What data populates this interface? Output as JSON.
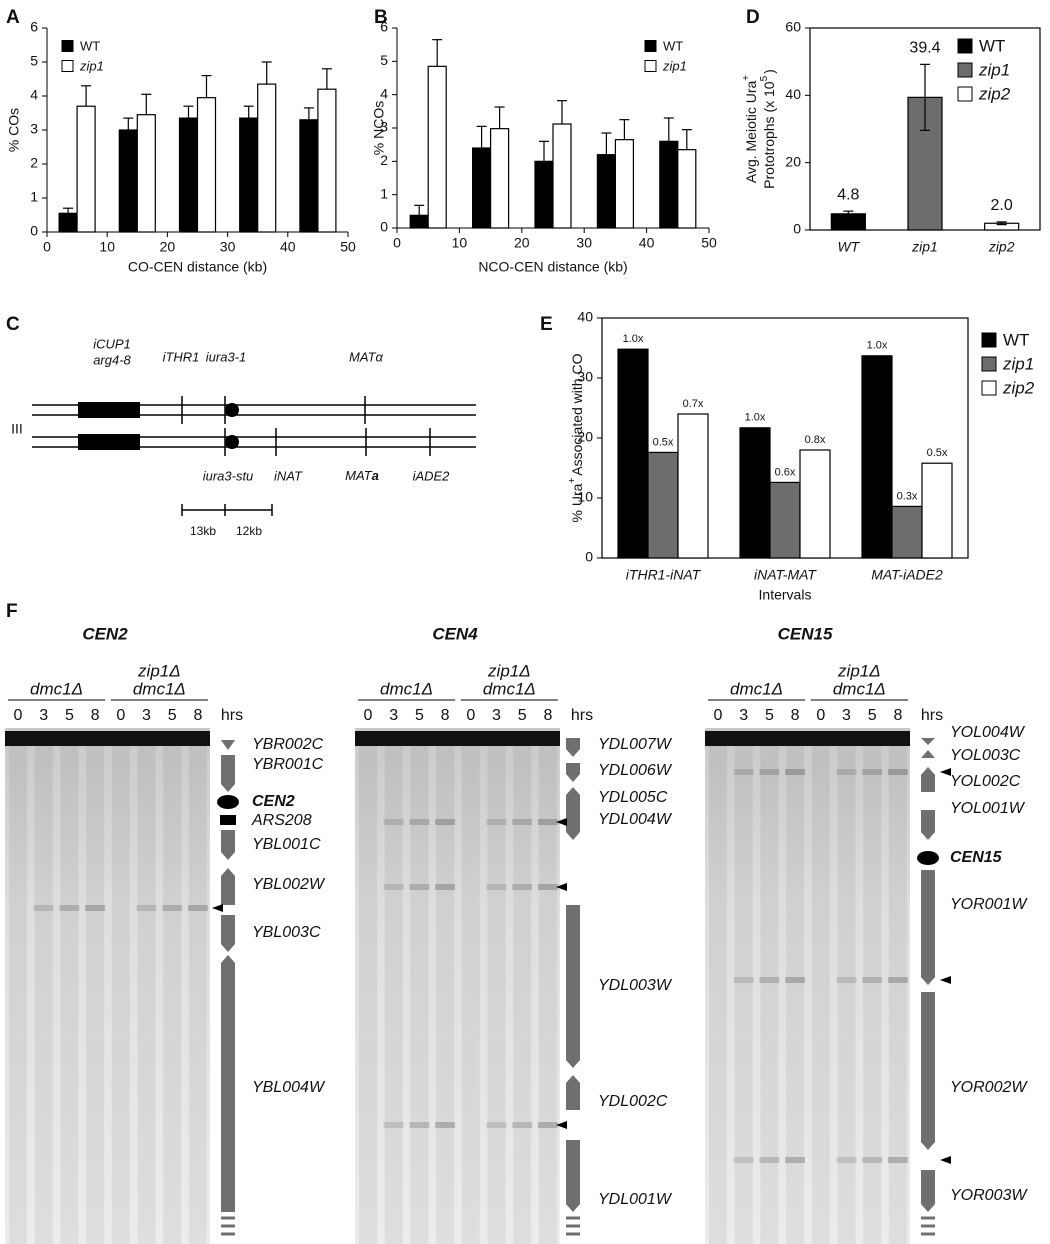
{
  "chart_data": [
    {
      "panel": "A",
      "type": "bar",
      "xlabel": "CO-CEN distance (kb)",
      "ylabel": "% COs",
      "x": [
        5,
        15,
        25,
        35,
        45
      ],
      "xlim": [
        0,
        50
      ],
      "xticks": [
        0,
        10,
        20,
        30,
        40,
        50
      ],
      "ylim": [
        0,
        6
      ],
      "yticks": [
        0,
        1,
        2,
        3,
        4,
        5,
        6
      ],
      "legend": "upper left",
      "series": [
        {
          "name": "WT",
          "color": "#000000",
          "values": [
            0.55,
            3.0,
            3.35,
            3.35,
            3.3
          ],
          "errors": [
            0.15,
            0.35,
            0.35,
            0.35,
            0.35
          ]
        },
        {
          "name": "zip1",
          "color": "#ffffff",
          "values": [
            3.7,
            3.45,
            3.95,
            4.35,
            4.2
          ],
          "errors": [
            0.6,
            0.6,
            0.65,
            0.65,
            0.6
          ]
        }
      ]
    },
    {
      "panel": "B",
      "type": "bar",
      "xlabel": "NCO-CEN distance (kb)",
      "ylabel": "% NCOs",
      "x": [
        5,
        15,
        25,
        35,
        45
      ],
      "xlim": [
        0,
        50
      ],
      "xticks": [
        0,
        10,
        20,
        30,
        40,
        50
      ],
      "ylim": [
        0,
        6
      ],
      "yticks": [
        0,
        1,
        2,
        3,
        4,
        5,
        6
      ],
      "legend": "upper right",
      "series": [
        {
          "name": "WT",
          "color": "#000000",
          "values": [
            0.38,
            2.4,
            2.0,
            2.2,
            2.6
          ],
          "errors": [
            0.3,
            0.65,
            0.6,
            0.65,
            0.7
          ]
        },
        {
          "name": "zip1",
          "color": "#ffffff",
          "values": [
            4.85,
            2.98,
            3.12,
            2.65,
            2.35
          ],
          "errors": [
            0.8,
            0.65,
            0.7,
            0.6,
            0.6
          ]
        }
      ]
    },
    {
      "panel": "D",
      "type": "bar",
      "ylabel": [
        "Avg. Meiotic Ura",
        "+",
        "Prototrophs (x 10",
        "5",
        ")"
      ],
      "categories": [
        "WT",
        "zip1",
        "zip2"
      ],
      "values": [
        4.8,
        39.4,
        2.0
      ],
      "value_labels": [
        "4.8",
        "39.4",
        "2.0"
      ],
      "errors": [
        0.8,
        9.8,
        0.4
      ],
      "colors": [
        "#000000",
        "#6d6d6d",
        "#ffffff"
      ],
      "ylim": [
        0,
        60
      ],
      "yticks": [
        0,
        20,
        40,
        60
      ],
      "legend": "upper right"
    },
    {
      "panel": "E",
      "type": "bar",
      "ylabel": [
        "% Ura",
        "+",
        "Associated with CO"
      ],
      "xlabel": "Intervals",
      "categories": [
        "iTHR1-iNAT",
        "iNAT-MAT",
        "MAT-iADE2"
      ],
      "ylim": [
        0,
        40
      ],
      "yticks": [
        0,
        10,
        20,
        30,
        40
      ],
      "legend": "right",
      "series": [
        {
          "name": "WT",
          "color": "#000000",
          "values": [
            34.8,
            21.7,
            33.7
          ],
          "fold_labels": [
            "1.0x",
            "1.0x",
            "1.0x"
          ]
        },
        {
          "name": "zip1",
          "color": "#6d6d6d",
          "values": [
            17.6,
            12.6,
            8.6
          ],
          "fold_labels": [
            "0.5x",
            "0.6x",
            "0.3x"
          ]
        },
        {
          "name": "zip2",
          "color": "#ffffff",
          "values": [
            24.0,
            18.0,
            15.8
          ],
          "fold_labels": [
            "0.7x",
            "0.8x",
            "0.5x"
          ]
        }
      ]
    }
  ],
  "diagram": {
    "panel": "C",
    "chromosome": "III",
    "top_labels": [
      "iCUP1",
      "arg4-8",
      "iTHR1",
      "iura3-1",
      "MATα"
    ],
    "bottom_labels": [
      "iura3-stu",
      "iNAT",
      "iADE2"
    ],
    "mat_a": [
      "MAT",
      "a"
    ],
    "scale": [
      "13kb",
      "12kb"
    ]
  },
  "gel_figure": {
    "panel": "F",
    "unit": "hrs",
    "blots": [
      {
        "title": "CEN2",
        "groups": [
          {
            "lines": [
              "dmc1Δ"
            ],
            "lanes": [
              "0",
              "3",
              "5",
              "8"
            ]
          },
          {
            "lines": [
              "zip1Δ",
              "dmc1Δ"
            ],
            "lanes": [
              "0",
              "3",
              "5",
              "8"
            ]
          }
        ],
        "genes": [
          {
            "name": "YBR002C"
          },
          {
            "name": "YBR001C"
          },
          {
            "name": "CEN2",
            "bold": true
          },
          {
            "name": "ARS208"
          },
          {
            "name": "YBL001C"
          },
          {
            "name": "YBL002W"
          },
          {
            "name": "YBL003C"
          },
          {
            "name": "YBL004W"
          }
        ]
      },
      {
        "title": "CEN4",
        "groups": [
          {
            "lines": [
              "dmc1Δ"
            ],
            "lanes": [
              "0",
              "3",
              "5",
              "8"
            ]
          },
          {
            "lines": [
              "zip1Δ",
              "dmc1Δ"
            ],
            "lanes": [
              "0",
              "3",
              "5",
              "8"
            ]
          }
        ],
        "genes": [
          {
            "name": "YDL007W"
          },
          {
            "name": "YDL006W"
          },
          {
            "name": "YDL005C"
          },
          {
            "name": "YDL004W"
          },
          {
            "name": "YDL003W"
          },
          {
            "name": "YDL002C"
          },
          {
            "name": "YDL001W"
          }
        ]
      },
      {
        "title": "CEN15",
        "groups": [
          {
            "lines": [
              "dmc1Δ"
            ],
            "lanes": [
              "0",
              "3",
              "5",
              "8"
            ]
          },
          {
            "lines": [
              "zip1Δ",
              "dmc1Δ"
            ],
            "lanes": [
              "0",
              "3",
              "5",
              "8"
            ]
          }
        ],
        "genes": [
          {
            "name": "YOL004W"
          },
          {
            "name": "YOL003C"
          },
          {
            "name": "YOL002C"
          },
          {
            "name": "YOL001W"
          },
          {
            "name": "CEN15",
            "bold": true
          },
          {
            "name": "YOR001W"
          },
          {
            "name": "YOR002W"
          },
          {
            "name": "YOR003W"
          }
        ]
      }
    ]
  }
}
